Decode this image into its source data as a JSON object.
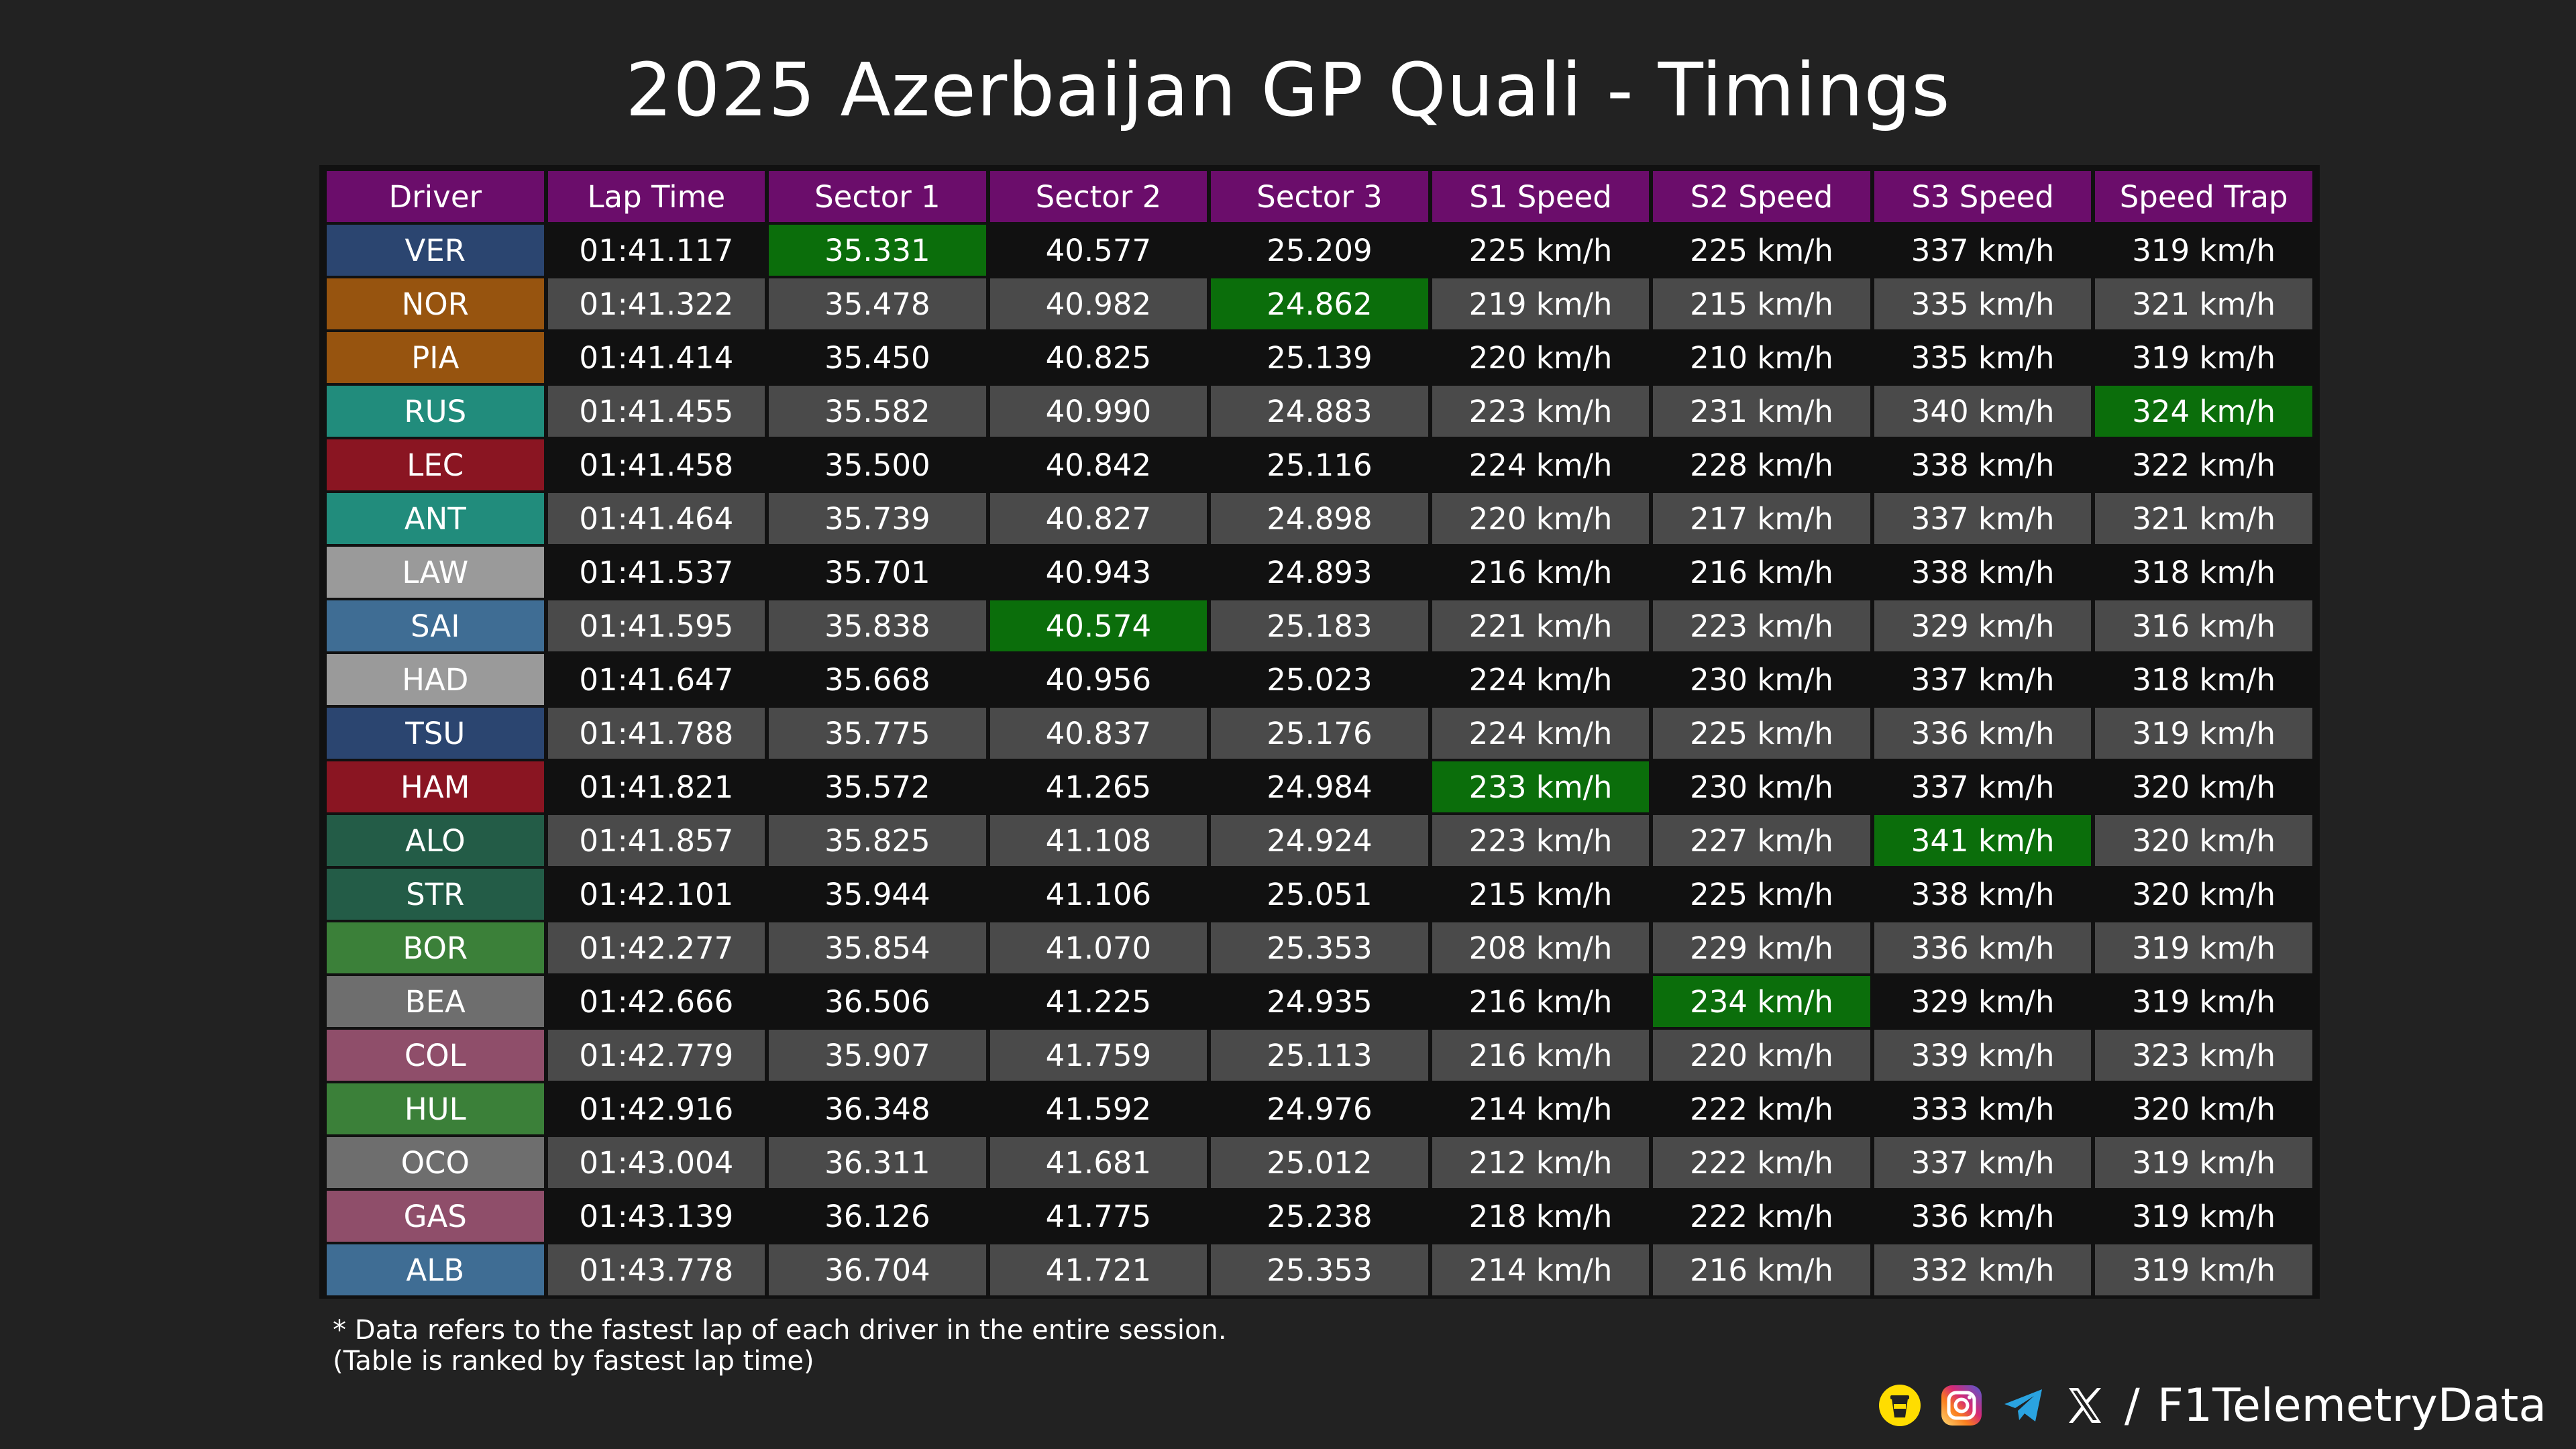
{
  "title": "2025 Azerbaijan GP Quali - Timings",
  "watermark": "@F1TelemetryData",
  "colors": {
    "background": "#222222",
    "header": "#6b0d6b",
    "best": "#0b6e0b",
    "row_dark": "#111111",
    "row_light": "#4a4a4a"
  },
  "table": {
    "headers": [
      "Driver",
      "Lap Time",
      "Sector 1",
      "Sector 2",
      "Sector 3",
      "S1 Speed",
      "S2 Speed",
      "S3 Speed",
      "Speed Trap"
    ],
    "rows": [
      {
        "driver": "VER",
        "color": "#2b4570",
        "cells": [
          "01:41.117",
          "35.331",
          "40.577",
          "25.209",
          "225 km/h",
          "225 km/h",
          "337 km/h",
          "319 km/h"
        ],
        "best": [
          1
        ]
      },
      {
        "driver": "NOR",
        "color": "#97540f",
        "cells": [
          "01:41.322",
          "35.478",
          "40.982",
          "24.862",
          "219 km/h",
          "215 km/h",
          "335 km/h",
          "321 km/h"
        ],
        "best": [
          3
        ]
      },
      {
        "driver": "PIA",
        "color": "#97540f",
        "cells": [
          "01:41.414",
          "35.450",
          "40.825",
          "25.139",
          "220 km/h",
          "210 km/h",
          "335 km/h",
          "319 km/h"
        ],
        "best": []
      },
      {
        "driver": "RUS",
        "color": "#218c7c",
        "cells": [
          "01:41.455",
          "35.582",
          "40.990",
          "24.883",
          "223 km/h",
          "231 km/h",
          "340 km/h",
          "324 km/h"
        ],
        "best": [
          7
        ]
      },
      {
        "driver": "LEC",
        "color": "#8a1522",
        "cells": [
          "01:41.458",
          "35.500",
          "40.842",
          "25.116",
          "224 km/h",
          "228 km/h",
          "338 km/h",
          "322 km/h"
        ],
        "best": []
      },
      {
        "driver": "ANT",
        "color": "#218c7c",
        "cells": [
          "01:41.464",
          "35.739",
          "40.827",
          "24.898",
          "220 km/h",
          "217 km/h",
          "337 km/h",
          "321 km/h"
        ],
        "best": []
      },
      {
        "driver": "LAW",
        "color": "#9a9a9a",
        "cells": [
          "01:41.537",
          "35.701",
          "40.943",
          "24.893",
          "216 km/h",
          "216 km/h",
          "338 km/h",
          "318 km/h"
        ],
        "best": []
      },
      {
        "driver": "SAI",
        "color": "#3f6d94",
        "cells": [
          "01:41.595",
          "35.838",
          "40.574",
          "25.183",
          "221 km/h",
          "223 km/h",
          "329 km/h",
          "316 km/h"
        ],
        "best": [
          2
        ]
      },
      {
        "driver": "HAD",
        "color": "#9a9a9a",
        "cells": [
          "01:41.647",
          "35.668",
          "40.956",
          "25.023",
          "224 km/h",
          "230 km/h",
          "337 km/h",
          "318 km/h"
        ],
        "best": []
      },
      {
        "driver": "TSU",
        "color": "#2b4570",
        "cells": [
          "01:41.788",
          "35.775",
          "40.837",
          "25.176",
          "224 km/h",
          "225 km/h",
          "336 km/h",
          "319 km/h"
        ],
        "best": []
      },
      {
        "driver": "HAM",
        "color": "#8a1522",
        "cells": [
          "01:41.821",
          "35.572",
          "41.265",
          "24.984",
          "233 km/h",
          "230 km/h",
          "337 km/h",
          "320 km/h"
        ],
        "best": [
          4
        ]
      },
      {
        "driver": "ALO",
        "color": "#235c47",
        "cells": [
          "01:41.857",
          "35.825",
          "41.108",
          "24.924",
          "223 km/h",
          "227 km/h",
          "341 km/h",
          "320 km/h"
        ],
        "best": [
          6
        ]
      },
      {
        "driver": "STR",
        "color": "#235c47",
        "cells": [
          "01:42.101",
          "35.944",
          "41.106",
          "25.051",
          "215 km/h",
          "225 km/h",
          "338 km/h",
          "320 km/h"
        ],
        "best": []
      },
      {
        "driver": "BOR",
        "color": "#3b8039",
        "cells": [
          "01:42.277",
          "35.854",
          "41.070",
          "25.353",
          "208 km/h",
          "229 km/h",
          "336 km/h",
          "319 km/h"
        ],
        "best": []
      },
      {
        "driver": "BEA",
        "color": "#6e6e6e",
        "cells": [
          "01:42.666",
          "36.506",
          "41.225",
          "24.935",
          "216 km/h",
          "234 km/h",
          "329 km/h",
          "319 km/h"
        ],
        "best": [
          5
        ]
      },
      {
        "driver": "COL",
        "color": "#8f4e6a",
        "cells": [
          "01:42.779",
          "35.907",
          "41.759",
          "25.113",
          "216 km/h",
          "220 km/h",
          "339 km/h",
          "323 km/h"
        ],
        "best": []
      },
      {
        "driver": "HUL",
        "color": "#3b8039",
        "cells": [
          "01:42.916",
          "36.348",
          "41.592",
          "24.976",
          "214 km/h",
          "222 km/h",
          "333 km/h",
          "320 km/h"
        ],
        "best": []
      },
      {
        "driver": "OCO",
        "color": "#6e6e6e",
        "cells": [
          "01:43.004",
          "36.311",
          "41.681",
          "25.012",
          "212 km/h",
          "222 km/h",
          "337 km/h",
          "319 km/h"
        ],
        "best": []
      },
      {
        "driver": "GAS",
        "color": "#8f4e6a",
        "cells": [
          "01:43.139",
          "36.126",
          "41.775",
          "25.238",
          "218 km/h",
          "222 km/h",
          "336 km/h",
          "319 km/h"
        ],
        "best": []
      },
      {
        "driver": "ALB",
        "color": "#3f6d94",
        "cells": [
          "01:43.778",
          "36.704",
          "41.721",
          "25.353",
          "214 km/h",
          "216 km/h",
          "332 km/h",
          "319 km/h"
        ],
        "best": []
      }
    ]
  },
  "footnote": {
    "line1": "* Data refers to the fastest lap of each driver in the entire session.",
    "line2": "(Table is ranked by fastest lap time)"
  },
  "brand": {
    "slash": "/",
    "handle": "F1TelemetryData",
    "icons": [
      "buymeacoffee-icon",
      "instagram-icon",
      "telegram-icon",
      "x-icon"
    ]
  }
}
